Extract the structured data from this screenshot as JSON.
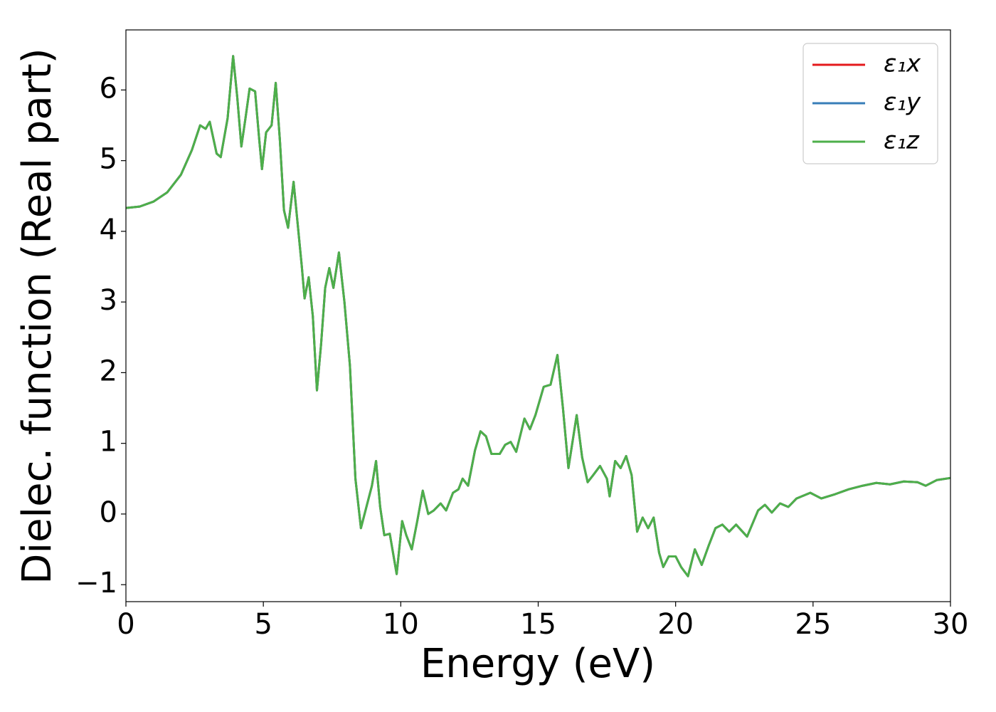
{
  "chart_data": {
    "type": "line",
    "xlabel": "Energy (eV)",
    "ylabel": "Dielec. function (Real part)",
    "x": [
      0,
      0.5,
      1.0,
      1.5,
      2.0,
      2.4,
      2.7,
      2.9,
      3.05,
      3.3,
      3.45,
      3.7,
      3.9,
      4.05,
      4.2,
      4.35,
      4.5,
      4.7,
      4.85,
      4.95,
      5.1,
      5.3,
      5.45,
      5.6,
      5.75,
      5.9,
      6.1,
      6.25,
      6.4,
      6.5,
      6.65,
      6.8,
      6.95,
      7.1,
      7.25,
      7.4,
      7.55,
      7.75,
      7.95,
      8.15,
      8.35,
      8.55,
      8.75,
      8.95,
      9.1,
      9.25,
      9.4,
      9.6,
      9.85,
      10.05,
      10.2,
      10.4,
      10.6,
      10.8,
      11.0,
      11.2,
      11.45,
      11.65,
      11.9,
      12.1,
      12.25,
      12.45,
      12.7,
      12.9,
      13.1,
      13.3,
      13.6,
      13.8,
      14.0,
      14.2,
      14.5,
      14.7,
      14.9,
      15.2,
      15.45,
      15.7,
      15.9,
      16.1,
      16.4,
      16.6,
      16.8,
      17.0,
      17.25,
      17.5,
      17.6,
      17.8,
      18.0,
      18.2,
      18.4,
      18.6,
      18.8,
      19.0,
      19.2,
      19.4,
      19.55,
      19.75,
      20.0,
      20.2,
      20.45,
      20.7,
      20.95,
      21.2,
      21.45,
      21.7,
      21.95,
      22.2,
      22.6,
      23.0,
      23.25,
      23.5,
      23.8,
      24.1,
      24.4,
      24.9,
      25.3,
      25.8,
      26.3,
      26.8,
      27.3,
      27.8,
      28.3,
      28.8,
      29.1,
      29.5,
      30.0
    ],
    "series": [
      {
        "name": "ε₁x",
        "color": "#e41a1c",
        "values": [
          4.33,
          4.35,
          4.42,
          4.55,
          4.8,
          5.15,
          5.5,
          5.45,
          5.55,
          5.1,
          5.05,
          5.6,
          6.48,
          5.9,
          5.2,
          5.6,
          6.02,
          5.98,
          5.3,
          4.88,
          5.4,
          5.5,
          6.1,
          5.3,
          4.3,
          4.05,
          4.7,
          4.1,
          3.5,
          3.05,
          3.35,
          2.8,
          1.75,
          2.4,
          3.2,
          3.48,
          3.2,
          3.7,
          3.0,
          2.1,
          0.5,
          -0.2,
          0.1,
          0.4,
          0.75,
          0.1,
          -0.3,
          -0.28,
          -0.85,
          -0.1,
          -0.3,
          -0.5,
          -0.1,
          0.33,
          0.0,
          0.05,
          0.15,
          0.05,
          0.3,
          0.35,
          0.5,
          0.4,
          0.9,
          1.17,
          1.1,
          0.85,
          0.85,
          0.98,
          1.02,
          0.88,
          1.35,
          1.2,
          1.4,
          1.8,
          1.83,
          2.25,
          1.5,
          0.65,
          1.4,
          0.8,
          0.45,
          0.55,
          0.68,
          0.5,
          0.25,
          0.75,
          0.65,
          0.82,
          0.55,
          -0.25,
          -0.05,
          -0.2,
          -0.05,
          -0.55,
          -0.75,
          -0.6,
          -0.6,
          -0.75,
          -0.88,
          -0.5,
          -0.72,
          -0.45,
          -0.2,
          -0.15,
          -0.25,
          -0.15,
          -0.32,
          0.05,
          0.13,
          0.02,
          0.15,
          0.1,
          0.22,
          0.3,
          0.22,
          0.28,
          0.35,
          0.4,
          0.44,
          0.42,
          0.46,
          0.45,
          0.4,
          0.48,
          0.51
        ]
      },
      {
        "name": "ε₁y",
        "color": "#377eb8",
        "values": [
          4.33,
          4.35,
          4.42,
          4.55,
          4.8,
          5.15,
          5.5,
          5.45,
          5.55,
          5.1,
          5.05,
          5.6,
          6.48,
          5.9,
          5.2,
          5.6,
          6.02,
          5.98,
          5.3,
          4.88,
          5.4,
          5.5,
          6.1,
          5.3,
          4.3,
          4.05,
          4.7,
          4.1,
          3.5,
          3.05,
          3.35,
          2.8,
          1.75,
          2.4,
          3.2,
          3.48,
          3.2,
          3.7,
          3.0,
          2.1,
          0.5,
          -0.2,
          0.1,
          0.4,
          0.75,
          0.1,
          -0.3,
          -0.28,
          -0.85,
          -0.1,
          -0.3,
          -0.5,
          -0.1,
          0.33,
          0.0,
          0.05,
          0.15,
          0.05,
          0.3,
          0.35,
          0.5,
          0.4,
          0.9,
          1.17,
          1.1,
          0.85,
          0.85,
          0.98,
          1.02,
          0.88,
          1.35,
          1.2,
          1.4,
          1.8,
          1.83,
          2.25,
          1.5,
          0.65,
          1.4,
          0.8,
          0.45,
          0.55,
          0.68,
          0.5,
          0.25,
          0.75,
          0.65,
          0.82,
          0.55,
          -0.25,
          -0.05,
          -0.2,
          -0.05,
          -0.55,
          -0.75,
          -0.6,
          -0.6,
          -0.75,
          -0.88,
          -0.5,
          -0.72,
          -0.45,
          -0.2,
          -0.15,
          -0.25,
          -0.15,
          -0.32,
          0.05,
          0.13,
          0.02,
          0.15,
          0.1,
          0.22,
          0.3,
          0.22,
          0.28,
          0.35,
          0.4,
          0.44,
          0.42,
          0.46,
          0.45,
          0.4,
          0.48,
          0.51
        ]
      },
      {
        "name": "ε₁z",
        "color": "#4daf4a",
        "values": [
          4.33,
          4.35,
          4.42,
          4.55,
          4.8,
          5.15,
          5.5,
          5.45,
          5.55,
          5.1,
          5.05,
          5.6,
          6.48,
          5.9,
          5.2,
          5.6,
          6.02,
          5.98,
          5.3,
          4.88,
          5.4,
          5.5,
          6.1,
          5.3,
          4.3,
          4.05,
          4.7,
          4.1,
          3.5,
          3.05,
          3.35,
          2.8,
          1.75,
          2.4,
          3.2,
          3.48,
          3.2,
          3.7,
          3.0,
          2.1,
          0.5,
          -0.2,
          0.1,
          0.4,
          0.75,
          0.1,
          -0.3,
          -0.28,
          -0.85,
          -0.1,
          -0.3,
          -0.5,
          -0.1,
          0.33,
          0.0,
          0.05,
          0.15,
          0.05,
          0.3,
          0.35,
          0.5,
          0.4,
          0.9,
          1.17,
          1.1,
          0.85,
          0.85,
          0.98,
          1.02,
          0.88,
          1.35,
          1.2,
          1.4,
          1.8,
          1.83,
          2.25,
          1.5,
          0.65,
          1.4,
          0.8,
          0.45,
          0.55,
          0.68,
          0.5,
          0.25,
          0.75,
          0.65,
          0.82,
          0.55,
          -0.25,
          -0.05,
          -0.2,
          -0.05,
          -0.55,
          -0.75,
          -0.6,
          -0.6,
          -0.75,
          -0.88,
          -0.5,
          -0.72,
          -0.45,
          -0.2,
          -0.15,
          -0.25,
          -0.15,
          -0.32,
          0.05,
          0.13,
          0.02,
          0.15,
          0.1,
          0.22,
          0.3,
          0.22,
          0.28,
          0.35,
          0.4,
          0.44,
          0.42,
          0.46,
          0.45,
          0.4,
          0.48,
          0.51
        ]
      }
    ],
    "xlim": [
      0,
      30
    ],
    "xticks": [
      0,
      5,
      10,
      15,
      20,
      25,
      30
    ],
    "ylim": [
      -1.24,
      6.85
    ],
    "yticks": [
      {
        "value": -1,
        "label": "−1"
      },
      0,
      1,
      2,
      3,
      4,
      5,
      6
    ],
    "grid": false,
    "legend": "upper right"
  }
}
